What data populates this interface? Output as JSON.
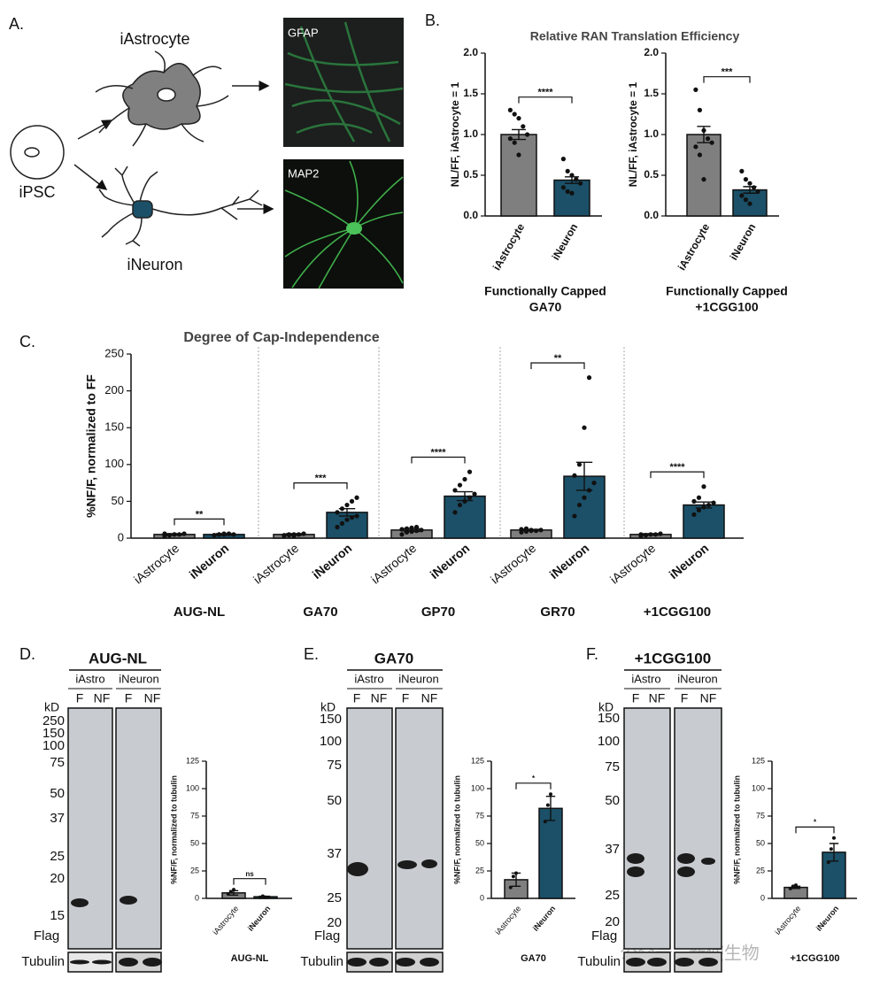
{
  "panel_labels": [
    "A.",
    "B.",
    "C.",
    "D.",
    "E.",
    "F."
  ],
  "panel_a": {
    "astrocyte": "iAstrocyte",
    "neuron": "iNeuron",
    "ipsc": "iPSC",
    "stain_astrocyte": "GFAP",
    "stain_neuron": "MAP2"
  },
  "chart_data": [
    {
      "type": "bar",
      "title": "Relative RAN Translation Efficiency",
      "ylabel": "NL/FF, iAstrocyte = 1",
      "categories": [
        "iAstrocyte",
        "iNeuron"
      ],
      "colors": [
        "#7f7f7f",
        "#1b5068"
      ],
      "ylim": [
        0,
        2
      ],
      "yticks": [
        {
          "value": 0,
          "label": "0.0"
        },
        0.5,
        {
          "value": 1,
          "label": "1.0"
        },
        1.5,
        {
          "value": 2,
          "label": "2.0"
        }
      ],
      "groups": [
        {
          "name": [
            "Functionally Capped",
            "GA70"
          ],
          "values": [
            1.0,
            0.44
          ],
          "errors": [
            0.06,
            0.04
          ],
          "points": [
            [
              1.3,
              1.25,
              1.2,
              1.1,
              1.0,
              0.95,
              0.9,
              0.75
            ],
            [
              0.7,
              0.55,
              0.5,
              0.45,
              0.4,
              0.35,
              0.3,
              0.28
            ]
          ],
          "significance": "****"
        }
      ]
    },
    {
      "type": "bar",
      "ylabel": "NL/FF, iAstrocyte = 1",
      "categories": [
        "iAstrocyte",
        "iNeuron"
      ],
      "colors": [
        "#7f7f7f",
        "#1b5068"
      ],
      "ylim": [
        0,
        2
      ],
      "yticks": [
        {
          "value": 0,
          "label": "0.0"
        },
        0.5,
        {
          "value": 1,
          "label": "1.0"
        },
        1.5,
        {
          "value": 2,
          "label": "2.0"
        }
      ],
      "groups": [
        {
          "name": [
            "Functionally Capped",
            "+1CGG100"
          ],
          "values": [
            1.0,
            0.32
          ],
          "errors": [
            0.1,
            0.04
          ],
          "points": [
            [
              1.55,
              1.3,
              1.05,
              0.95,
              0.9,
              0.85,
              0.75,
              0.45
            ],
            [
              0.55,
              0.45,
              0.4,
              0.35,
              0.3,
              0.25,
              0.2,
              0.15
            ]
          ],
          "significance": "***"
        }
      ]
    },
    {
      "type": "bar",
      "title": "Degree of Cap-Independence",
      "ylabel": "%NF/F, normalized to FF",
      "categories": [
        "iAstrocyte",
        "iNeuron"
      ],
      "colors": [
        "#7f7f7f",
        "#1b5068"
      ],
      "ylim": [
        0,
        250
      ],
      "yticks": [
        0,
        50,
        100,
        150,
        200,
        250
      ],
      "groups": [
        {
          "name": "AUG-NL",
          "values": [
            5,
            5
          ],
          "errors": [
            1,
            1
          ],
          "points": [
            [
              3,
              4,
              5,
              5,
              6,
              6,
              4,
              5
            ],
            [
              4,
              5,
              5,
              6,
              5,
              4,
              5,
              6
            ]
          ],
          "significance": "**"
        },
        {
          "name": "GA70",
          "values": [
            5,
            35
          ],
          "errors": [
            1,
            5
          ],
          "points": [
            [
              3,
              4,
              5,
              5,
              6,
              4,
              5,
              3
            ],
            [
              15,
              20,
              25,
              28,
              30,
              35,
              40,
              45,
              50,
              55
            ]
          ],
          "significance": "***"
        },
        {
          "name": "GP70",
          "values": [
            11,
            57
          ],
          "errors": [
            2,
            6
          ],
          "points": [
            [
              5,
              8,
              9,
              10,
              11,
              12,
              13,
              14,
              15
            ],
            [
              35,
              45,
              50,
              55,
              60,
              65,
              72,
              80,
              90
            ]
          ],
          "significance": "****"
        },
        {
          "name": "GR70",
          "values": [
            11,
            84
          ],
          "errors": [
            1,
            19
          ],
          "points": [
            [
              8,
              9,
              10,
              10,
              11,
              12,
              13,
              11
            ],
            [
              30,
              45,
              55,
              65,
              75,
              85,
              100,
              150,
              218
            ]
          ],
          "significance": "**"
        },
        {
          "name": "+1CGG100",
          "values": [
            5,
            45
          ],
          "errors": [
            1,
            4
          ],
          "points": [
            [
              3,
              4,
              5,
              5,
              6,
              5,
              4
            ],
            [
              32,
              38,
              42,
              45,
              48,
              50,
              55,
              70
            ]
          ],
          "significance": "****"
        }
      ]
    },
    {
      "type": "bar",
      "ylabel": "%NF/F, normalized to tubulin",
      "categories": [
        "iAstrocyte",
        "iNeuron"
      ],
      "colors": [
        "#7f7f7f",
        "#1b5068"
      ],
      "ylim": [
        0,
        125
      ],
      "yticks": [
        0,
        25,
        50,
        75,
        100,
        125
      ],
      "groups": [
        {
          "name": "AUG-NL",
          "values": [
            5,
            1.5
          ],
          "errors": [
            2,
            0.5
          ],
          "points": [
            [
              4,
              6,
              8
            ],
            [
              1,
              2,
              1
            ]
          ],
          "significance": "ns"
        }
      ]
    },
    {
      "type": "bar",
      "ylabel": "%NF/F, normalized to tubulin",
      "categories": [
        "iAstrocyte",
        "iNeuron"
      ],
      "colors": [
        "#7f7f7f",
        "#1b5068"
      ],
      "ylim": [
        0,
        125
      ],
      "yticks": [
        0,
        25,
        50,
        75,
        100,
        125
      ],
      "groups": [
        {
          "name": "GA70",
          "values": [
            17,
            82
          ],
          "errors": [
            6,
            11
          ],
          "points": [
            [
              10,
              20,
              23
            ],
            [
              70,
              85,
              95
            ]
          ],
          "significance": "*"
        }
      ]
    },
    {
      "type": "bar",
      "ylabel": "%NF/F, normalized to tubulin",
      "categories": [
        "iAstrocyte",
        "iNeuron"
      ],
      "colors": [
        "#7f7f7f",
        "#1b5068"
      ],
      "ylim": [
        0,
        125
      ],
      "yticks": [
        0,
        25,
        50,
        75,
        100,
        125
      ],
      "groups": [
        {
          "name": "+1CGG100",
          "values": [
            10,
            42
          ],
          "errors": [
            1,
            8
          ],
          "points": [
            [
              9,
              11,
              12
            ],
            [
              33,
              45,
              55
            ]
          ],
          "significance": "*"
        }
      ]
    }
  ],
  "blots": [
    {
      "title": "AUG-NL",
      "groups": [
        "iAstro",
        "iNeuron"
      ],
      "lanes": [
        "F",
        "NF",
        "F",
        "NF"
      ],
      "unit": "kD",
      "markers": [
        250,
        150,
        100,
        75,
        50,
        37,
        25,
        20,
        15
      ],
      "target": "Flag",
      "loading": "Tubulin"
    },
    {
      "title": "GA70",
      "groups": [
        "iAstro",
        "iNeuron"
      ],
      "lanes": [
        "F",
        "NF",
        "F",
        "NF"
      ],
      "unit": "kD",
      "markers": [
        150,
        100,
        75,
        50,
        37,
        25,
        20
      ],
      "target": "Flag",
      "loading": "Tubulin"
    },
    {
      "title": "+1CGG100",
      "groups": [
        "iAstro",
        "iNeuron"
      ],
      "lanes": [
        "F",
        "NF",
        "F",
        "NF"
      ],
      "unit": "kD",
      "markers": [
        150,
        100,
        75,
        50,
        37,
        25,
        20
      ],
      "target": "Flag",
      "loading": "Tubulin"
    }
  ],
  "watermark": "公众号 · 新使生物"
}
